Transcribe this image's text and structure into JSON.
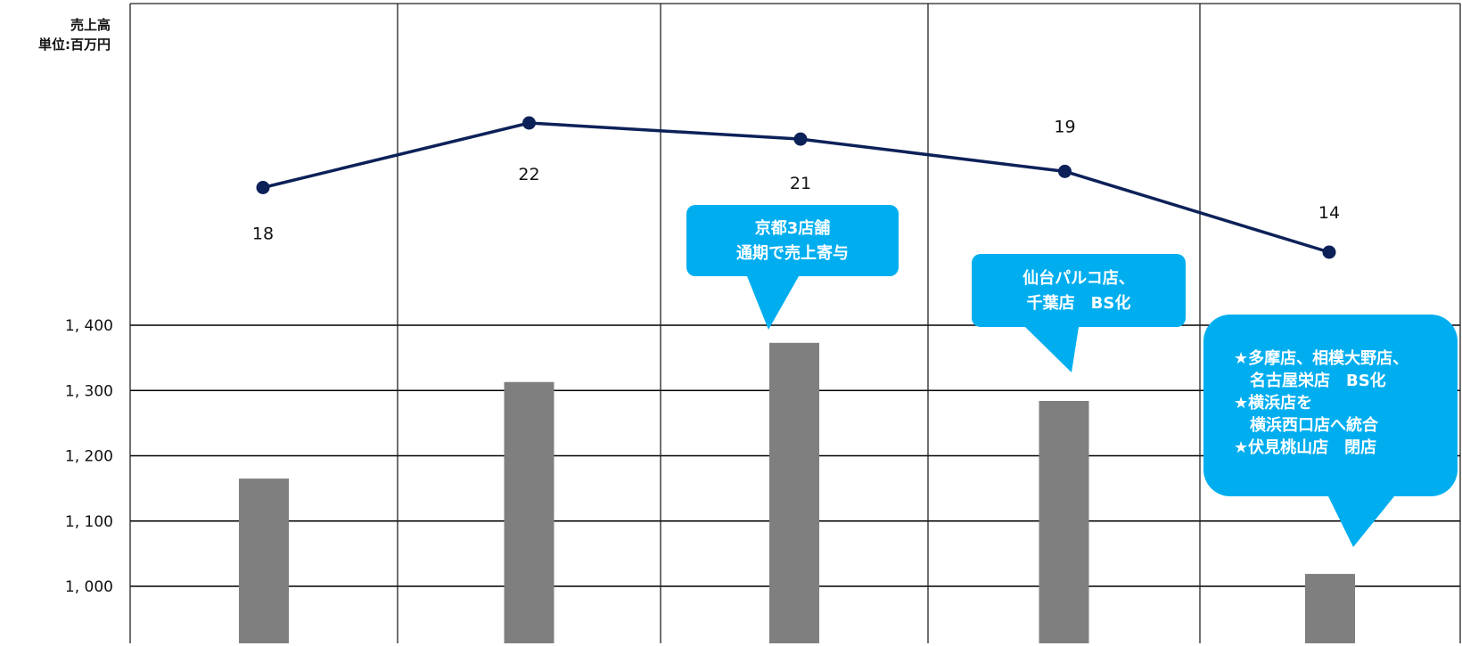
{
  "chart_data": {
    "type": "bar",
    "ylabel": [
      "売上高",
      "単位:百万円"
    ],
    "y_tick_labels": [
      "1, 000",
      "1, 100",
      "1, 200",
      "1, 300",
      "1, 400"
    ],
    "y_tick_values": [
      1000,
      1100,
      1200,
      1300,
      1400
    ],
    "grid": true,
    "series": [
      {
        "type": "bar",
        "values": [
          1165,
          1313,
          1373,
          1284,
          1019
        ],
        "color": "#7f7f7f"
      },
      {
        "type": "line",
        "values": [
          18,
          22,
          21,
          19,
          14
        ],
        "labels": [
          "18",
          "22",
          "21",
          "19",
          "14"
        ],
        "color": "#0d2159"
      }
    ],
    "annotations": [
      {
        "category_index": 2,
        "lines": [
          "京都3店舗",
          "通期で売上寄与"
        ]
      },
      {
        "category_index": 3,
        "lines": [
          "仙台パルコ店、",
          "千葉店　BS化"
        ]
      },
      {
        "category_index": 4,
        "lines": [
          "★多摩店、相模大野店、",
          "　名古屋栄店　BS化",
          "★横浜店を",
          "　横浜西口店へ統合",
          "★伏見桃山店　閉店"
        ]
      }
    ],
    "callout_color": "#00aeef"
  }
}
